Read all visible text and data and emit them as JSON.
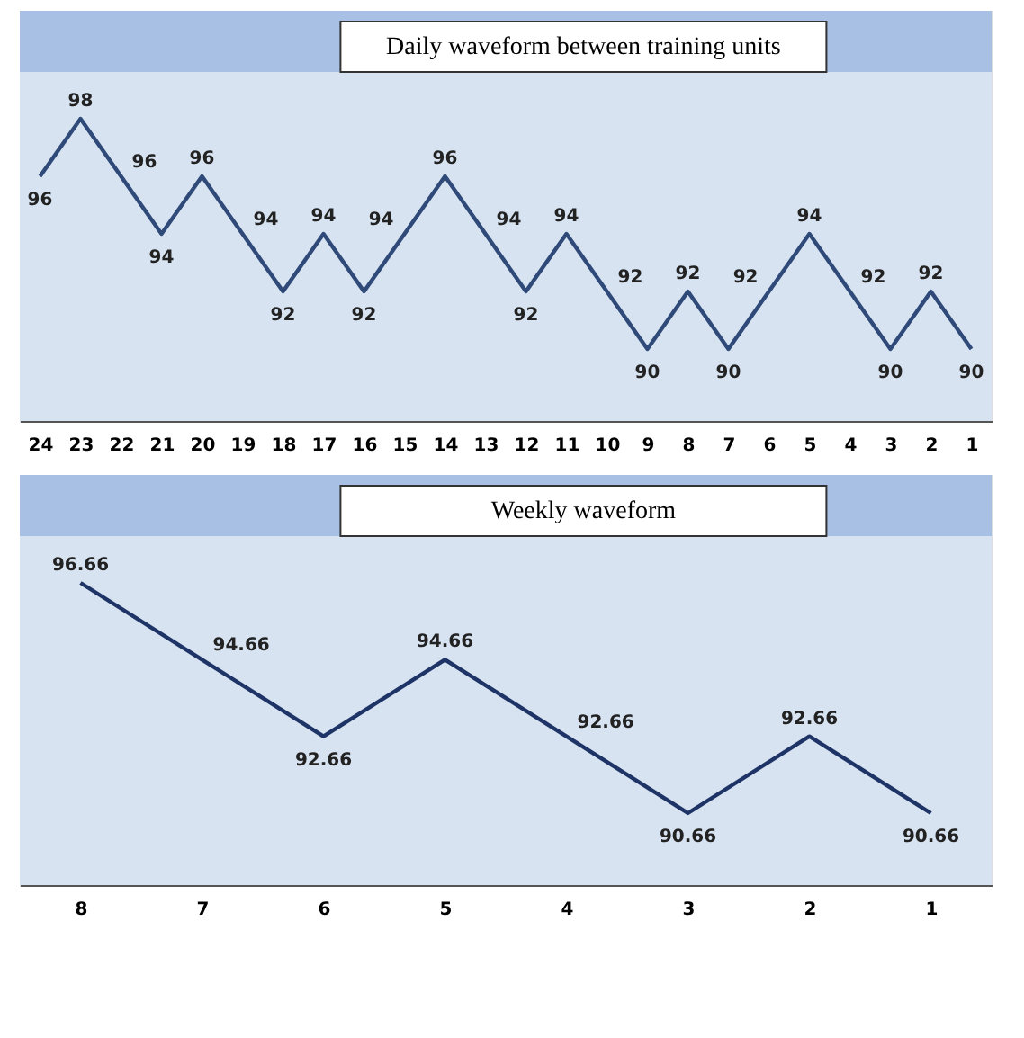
{
  "chart_data": [
    {
      "type": "line",
      "title": "Daily waveform between training units",
      "categories": [
        "24",
        "23",
        "22",
        "21",
        "20",
        "19",
        "18",
        "17",
        "16",
        "15",
        "14",
        "13",
        "12",
        "11",
        "10",
        "9",
        "8",
        "7",
        "6",
        "5",
        "4",
        "3",
        "2",
        "1"
      ],
      "values": [
        96,
        98,
        96,
        94,
        96,
        94,
        92,
        94,
        92,
        94,
        96,
        94,
        92,
        94,
        92,
        90,
        92,
        90,
        92,
        94,
        92,
        90,
        92,
        90
      ],
      "color": "#2f4a78",
      "data_labels": true,
      "marker": "none",
      "line_style": "solid"
    },
    {
      "type": "line",
      "title": "Weekly waveform",
      "categories": [
        "8",
        "7",
        "6",
        "5",
        "4",
        "3",
        "2",
        "1"
      ],
      "values": [
        96.66,
        94.66,
        92.66,
        94.66,
        92.66,
        90.66,
        92.66,
        90.66
      ],
      "color": "#1f3466",
      "data_labels": true,
      "marker": "none",
      "line_style": "solid"
    }
  ]
}
